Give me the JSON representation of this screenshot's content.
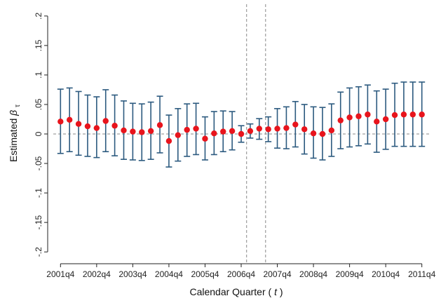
{
  "chart_data": {
    "type": "scatter",
    "xlabel": "Calendar Quarter",
    "xlabel_var": "t",
    "ylabel": "Estimated",
    "ylabel_symbol": "β",
    "ylabel_subscript": "τ",
    "ylim": [
      -0.22,
      0.22
    ],
    "yticks": [
      0.2,
      0.15,
      0.1,
      0.05,
      0,
      -0.05,
      -0.1,
      -0.15,
      -0.2
    ],
    "ytick_labels": [
      ".2",
      ".15",
      ".1",
      ".05",
      "0",
      "-.05",
      "-.1",
      "-.15",
      "-.2"
    ],
    "xticks": [
      0,
      4,
      8,
      12,
      16,
      20,
      24,
      28,
      32,
      36,
      40
    ],
    "xtick_labels": [
      "2001q4",
      "2002q4",
      "2003q4",
      "2004q4",
      "2005q4",
      "2006q4",
      "2007q4",
      "2008q4",
      "2009q4",
      "2010q4",
      "2011q4"
    ],
    "xlim": [
      -0.8,
      40.8
    ],
    "vlines": [
      20.6,
      22.7
    ],
    "hline": 0,
    "grid": false,
    "marker_color": "#e8141c",
    "errorbar_color": "#2c5a7f",
    "refline_color": "#888888",
    "series": [
      {
        "x": [
          0,
          1,
          2,
          3,
          4,
          5,
          6,
          7,
          8,
          9,
          10,
          11,
          12,
          13,
          14,
          15,
          16,
          17,
          18,
          19,
          20,
          21,
          22,
          23,
          24,
          25,
          26,
          27,
          28,
          29,
          30,
          31,
          32,
          33,
          34,
          35,
          36,
          37,
          38,
          39,
          40
        ],
        "estimate": [
          0.021,
          0.024,
          0.017,
          0.013,
          0.01,
          0.022,
          0.014,
          0.006,
          0.004,
          0.003,
          0.005,
          0.015,
          -0.012,
          -0.002,
          0.007,
          0.009,
          -0.008,
          0.001,
          0.004,
          0.005,
          0.0,
          0.005,
          0.009,
          0.008,
          0.009,
          0.01,
          0.016,
          0.008,
          0.001,
          0.0,
          0.006,
          0.023,
          0.028,
          0.03,
          0.033,
          0.021,
          0.025,
          0.032,
          0.033,
          0.033,
          0.033
        ],
        "lower": [
          -0.033,
          -0.03,
          -0.036,
          -0.038,
          -0.04,
          -0.03,
          -0.037,
          -0.043,
          -0.044,
          -0.045,
          -0.043,
          -0.032,
          -0.056,
          -0.046,
          -0.038,
          -0.035,
          -0.044,
          -0.035,
          -0.03,
          -0.027,
          -0.014,
          -0.007,
          -0.009,
          -0.013,
          -0.024,
          -0.025,
          -0.022,
          -0.034,
          -0.041,
          -0.044,
          -0.038,
          -0.025,
          -0.022,
          -0.02,
          -0.017,
          -0.031,
          -0.026,
          -0.021,
          -0.021,
          -0.021,
          -0.021
        ],
        "upper": [
          0.076,
          0.078,
          0.072,
          0.066,
          0.063,
          0.075,
          0.066,
          0.056,
          0.052,
          0.051,
          0.054,
          0.064,
          0.032,
          0.043,
          0.051,
          0.052,
          0.029,
          0.038,
          0.039,
          0.038,
          0.014,
          0.017,
          0.026,
          0.029,
          0.043,
          0.046,
          0.055,
          0.05,
          0.046,
          0.045,
          0.051,
          0.071,
          0.078,
          0.08,
          0.083,
          0.073,
          0.076,
          0.086,
          0.088,
          0.088,
          0.088
        ]
      }
    ]
  }
}
